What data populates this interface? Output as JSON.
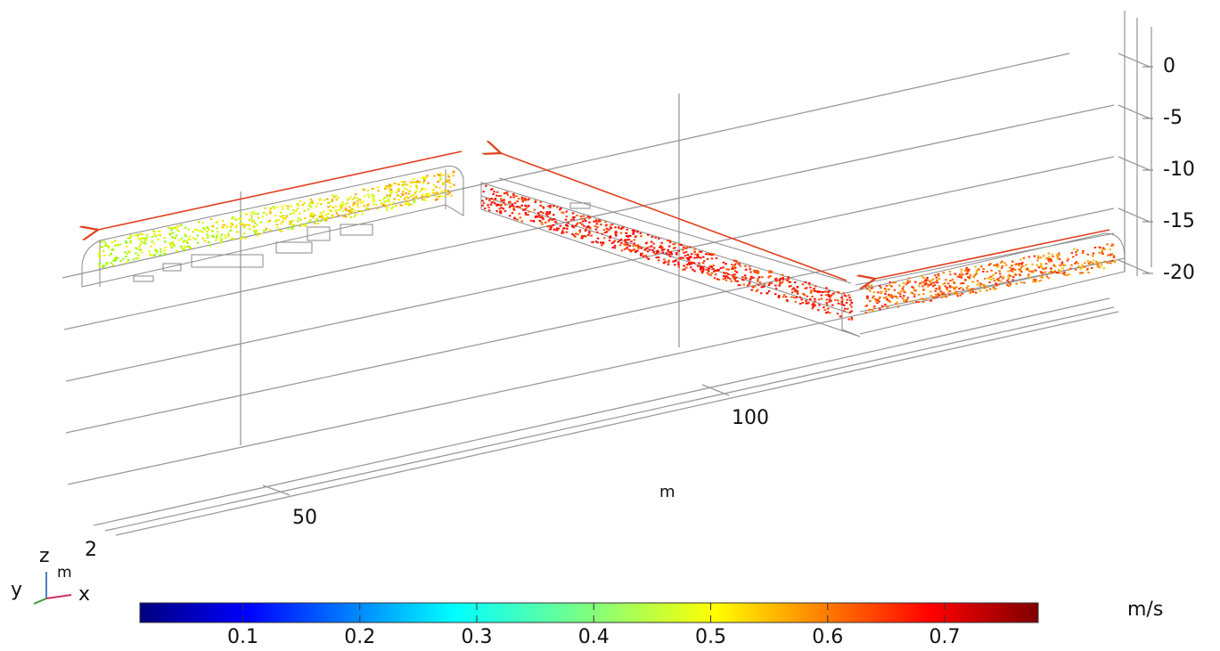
{
  "z_axis": {
    "ticks": [
      0,
      -5,
      -10,
      -15,
      -20
    ],
    "lim": [
      -20,
      0
    ]
  },
  "x_axis": {
    "ticks": [
      50,
      100
    ],
    "unit": "m"
  },
  "triad": {
    "z": "z",
    "unit": "m",
    "scale": "2",
    "y": "y",
    "x": "x"
  },
  "colorbar": {
    "lim": [
      0.012,
      0.78
    ],
    "ticks": [
      0.1,
      0.2,
      0.3,
      0.4,
      0.5,
      0.6,
      0.7
    ],
    "unit": "m/s"
  }
}
